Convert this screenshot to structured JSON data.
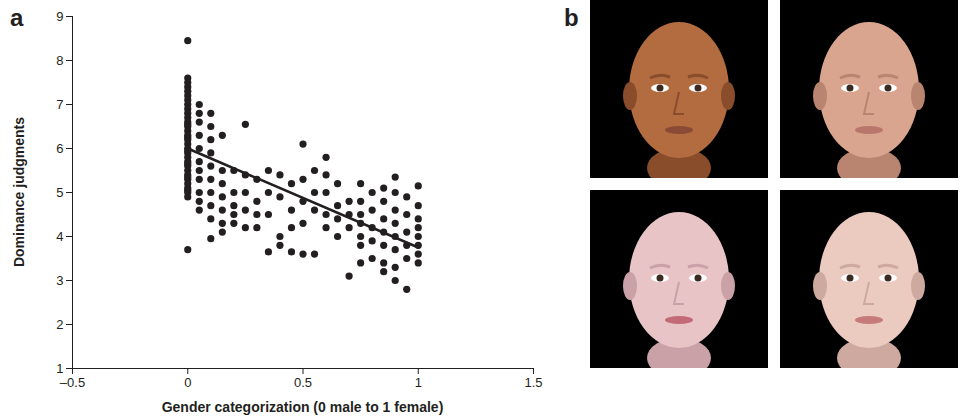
{
  "chart_data": {
    "type": "scatter",
    "panel": "a",
    "xlabel": "Gender categorization (0 male to 1 female)",
    "ylabel": "Dominance judgments",
    "xlim": [
      -0.5,
      1.5
    ],
    "xticks": [
      {
        "value": -0.5,
        "label": "–0.5"
      },
      0,
      0.5,
      1,
      1.5
    ],
    "ylim": [
      1,
      9
    ],
    "yticks": [
      1,
      2,
      3,
      4,
      5,
      6,
      7,
      8,
      9
    ],
    "series": [
      {
        "type": "scatter",
        "marker": "circle",
        "color": "#231f20",
        "x": [
          0,
          0,
          0,
          0,
          0,
          0,
          0,
          0,
          0,
          0,
          0,
          0,
          0,
          0,
          0,
          0,
          0,
          0,
          0,
          0,
          0,
          0,
          0,
          0,
          0,
          0,
          0,
          0,
          0,
          0,
          0,
          0,
          0,
          0,
          0,
          0,
          0.05,
          0.05,
          0.05,
          0.05,
          0.05,
          0.05,
          0.05,
          0.05,
          0.05,
          0.05,
          0.05,
          0.1,
          0.1,
          0.1,
          0.1,
          0.1,
          0.1,
          0.1,
          0.1,
          0.1,
          0.1,
          0.15,
          0.15,
          0.15,
          0.15,
          0.15,
          0.15,
          0.15,
          0.2,
          0.2,
          0.2,
          0.2,
          0.2,
          0.25,
          0.25,
          0.25,
          0.25,
          0.25,
          0.3,
          0.3,
          0.3,
          0.3,
          0.35,
          0.35,
          0.35,
          0.35,
          0.4,
          0.4,
          0.4,
          0.4,
          0.45,
          0.45,
          0.45,
          0.45,
          0.5,
          0.5,
          0.5,
          0.5,
          0.5,
          0.55,
          0.55,
          0.55,
          0.55,
          0.6,
          0.6,
          0.6,
          0.6,
          0.6,
          0.65,
          0.65,
          0.65,
          0.65,
          0.7,
          0.7,
          0.7,
          0.7,
          0.75,
          0.75,
          0.75,
          0.75,
          0.75,
          0.75,
          0.75,
          0.8,
          0.8,
          0.8,
          0.8,
          0.8,
          0.85,
          0.85,
          0.85,
          0.85,
          0.85,
          0.85,
          0.85,
          0.9,
          0.9,
          0.9,
          0.9,
          0.9,
          0.9,
          0.9,
          0.9,
          0.95,
          0.95,
          0.95,
          0.95,
          0.95,
          0.95,
          1,
          1,
          1,
          1,
          1,
          1,
          1,
          1
        ],
        "values": [
          8.45,
          7.6,
          7.5,
          7.4,
          7.3,
          7.2,
          7.1,
          7.0,
          6.9,
          6.8,
          6.7,
          6.6,
          6.5,
          6.4,
          6.3,
          6.2,
          6.1,
          6.0,
          5.9,
          5.8,
          5.7,
          5.6,
          5.5,
          5.4,
          5.3,
          5.2,
          5.1,
          5.0,
          4.9,
          3.7,
          6.55,
          6.25,
          5.95,
          5.65,
          5.35,
          5.05,
          7.0,
          6.8,
          6.6,
          6.3,
          6.0,
          5.7,
          5.5,
          5.3,
          5.0,
          4.8,
          4.6,
          6.8,
          6.5,
          6.2,
          5.9,
          5.6,
          5.3,
          5.0,
          4.7,
          4.4,
          3.95,
          6.3,
          5.5,
          5.2,
          4.9,
          4.6,
          4.3,
          4.1,
          5.5,
          5.0,
          4.7,
          4.5,
          4.3,
          6.55,
          5.4,
          5.0,
          4.6,
          4.2,
          5.3,
          4.8,
          4.5,
          4.2,
          5.5,
          5.0,
          4.5,
          3.65,
          5.4,
          4.9,
          4.0,
          3.8,
          5.2,
          4.6,
          4.2,
          3.65,
          6.1,
          5.3,
          4.8,
          4.3,
          3.6,
          5.5,
          5.0,
          4.6,
          3.6,
          5.8,
          5.4,
          5.0,
          4.5,
          4.2,
          5.2,
          4.7,
          4.4,
          4.0,
          4.8,
          4.5,
          4.2,
          3.1,
          5.2,
          4.8,
          4.5,
          4.3,
          4.0,
          3.8,
          3.4,
          5.0,
          4.6,
          4.2,
          3.9,
          3.5,
          5.1,
          4.8,
          4.4,
          4.1,
          3.8,
          3.4,
          3.2,
          5.35,
          5.0,
          4.6,
          4.3,
          4.0,
          3.7,
          3.3,
          3.0,
          4.9,
          4.5,
          4.1,
          3.8,
          3.5,
          2.8,
          5.15,
          4.7,
          4.4,
          4.2,
          4.0,
          3.8,
          3.6,
          3.4
        ]
      },
      {
        "type": "line",
        "line_style": "solid",
        "color": "#231f20",
        "x": [
          0,
          1
        ],
        "values": [
          6.0,
          3.75
        ]
      }
    ]
  },
  "panel_b": {
    "panel": "b"
  }
}
